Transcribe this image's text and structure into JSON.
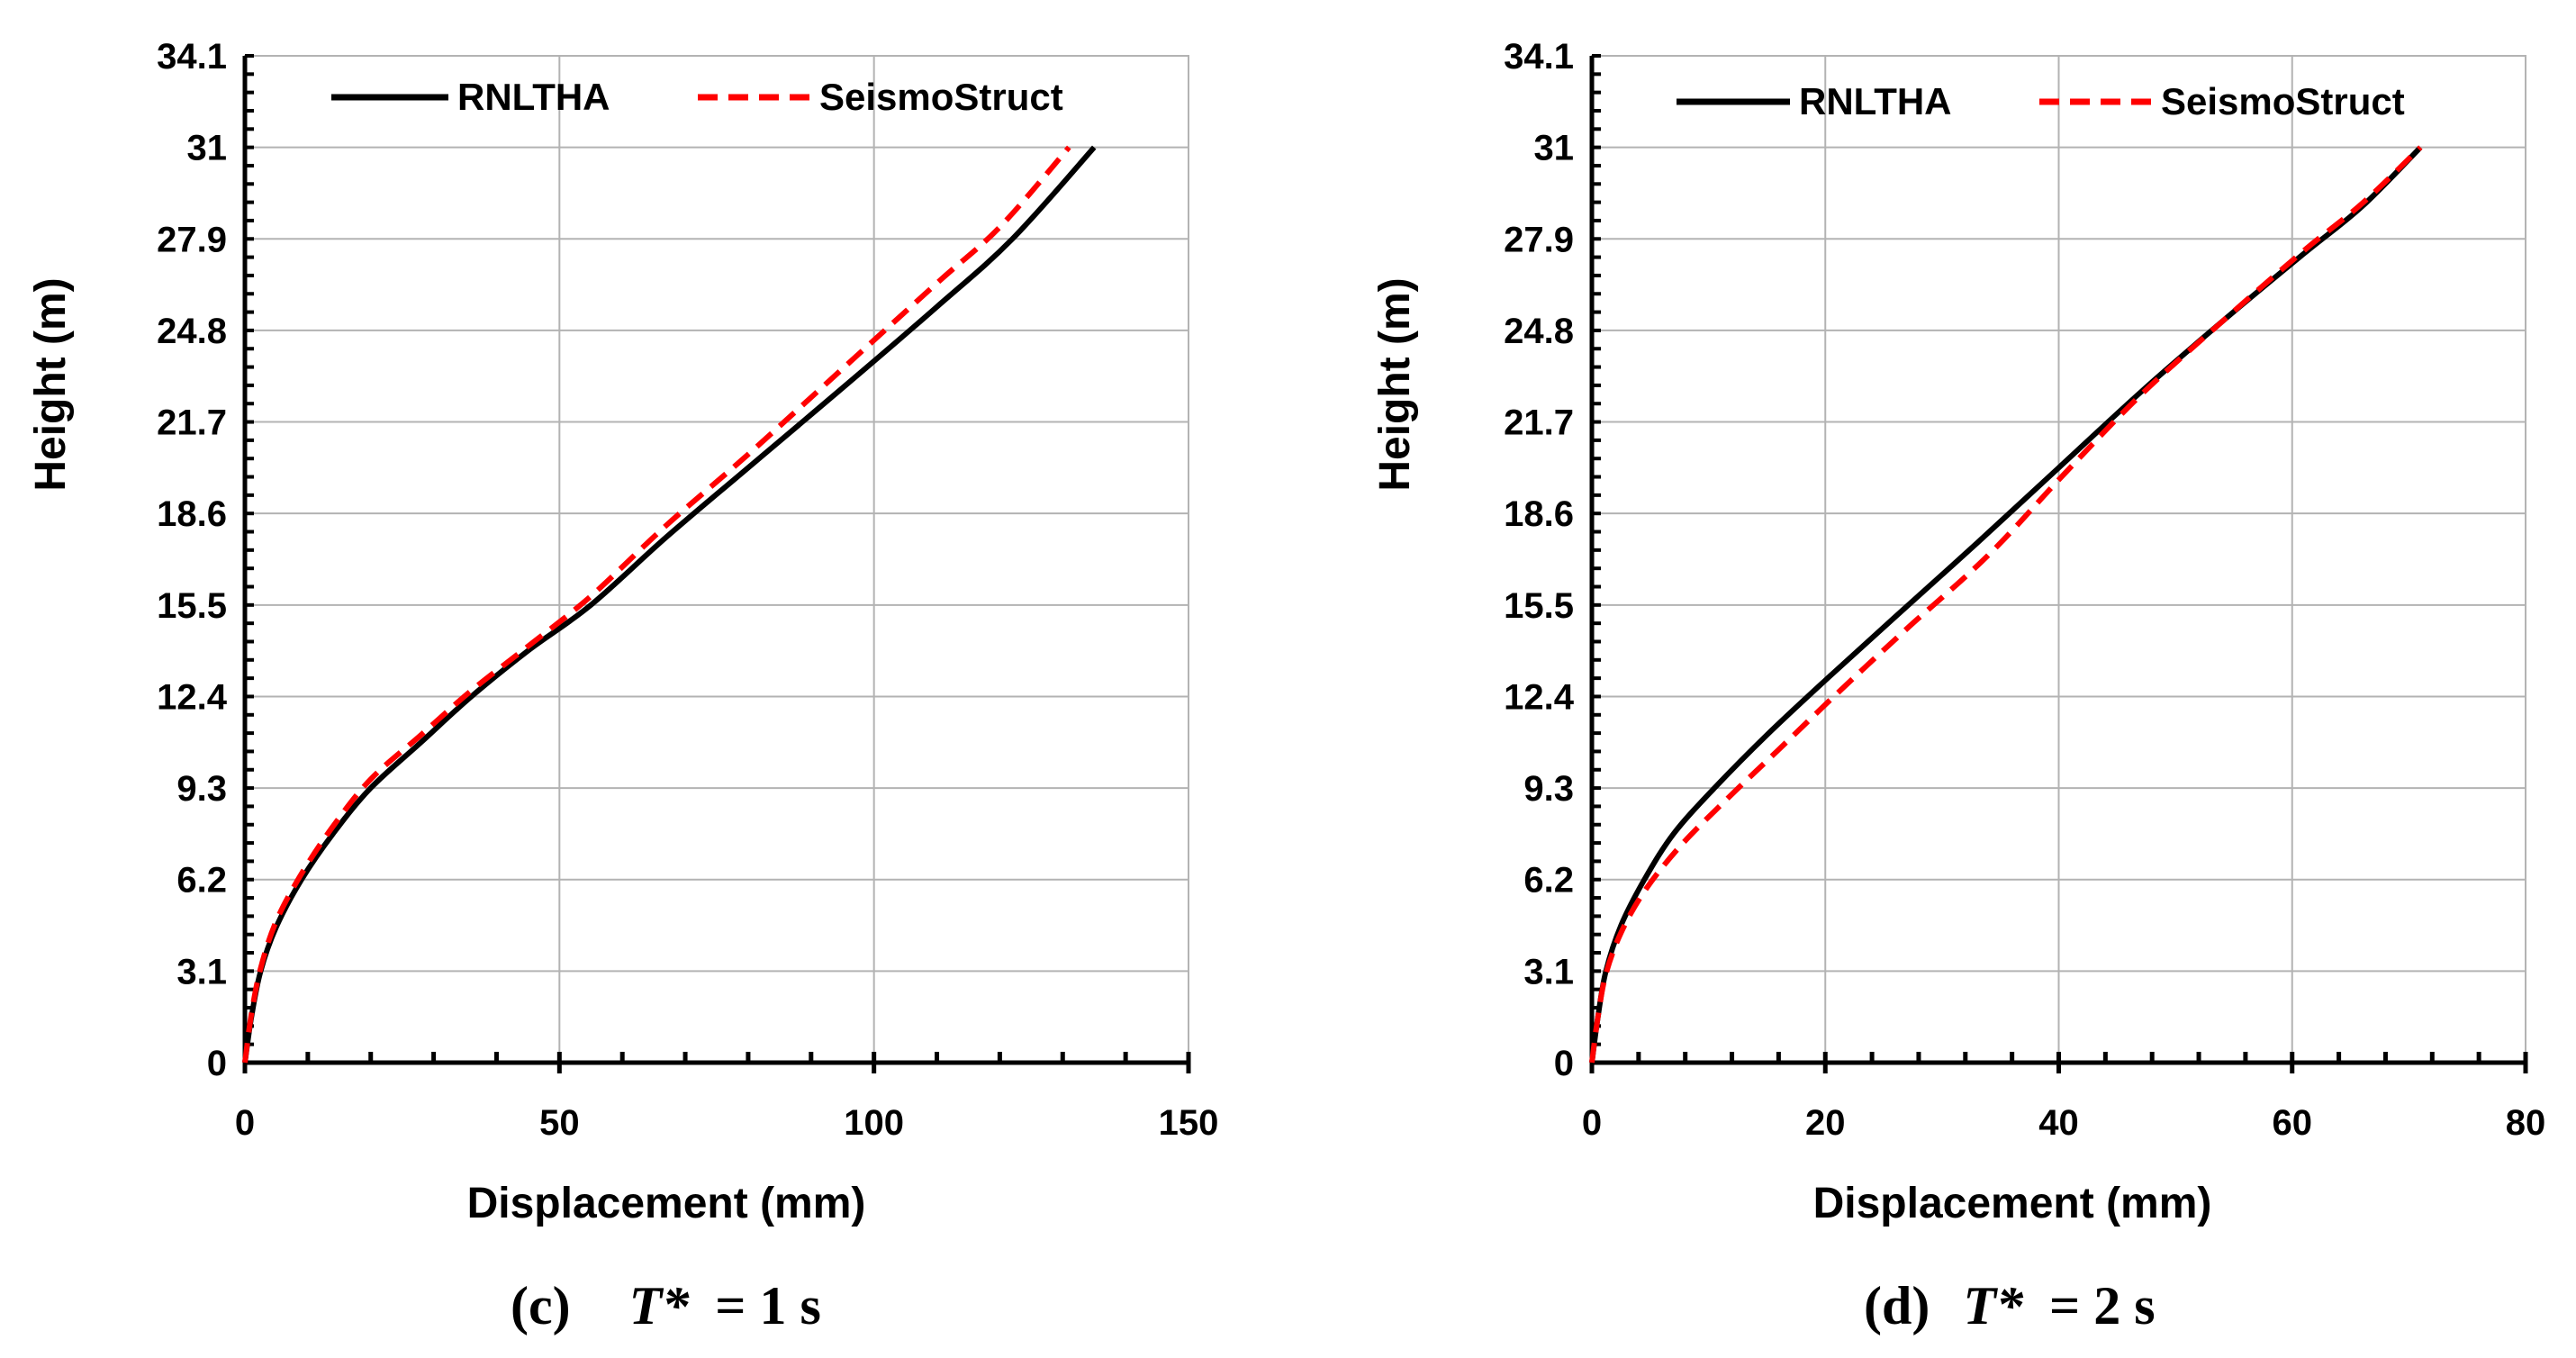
{
  "chart_data": [
    {
      "type": "line",
      "panel": "c",
      "caption": {
        "letter": "(c)",
        "symbol": "T*",
        "equals": "= 1 s"
      },
      "xlabel": "Displacement (mm)",
      "ylabel": "Height (m)",
      "xlim": [
        0,
        150
      ],
      "ylim": [
        0,
        34.1
      ],
      "xticks": [
        0,
        50,
        100,
        150
      ],
      "yticks": [
        0,
        3.1,
        6.2,
        9.3,
        12.4,
        15.5,
        18.6,
        21.7,
        24.8,
        27.9,
        31,
        34.1
      ],
      "grid": true,
      "legend_position": "top",
      "series": [
        {
          "name": "RNLTHA",
          "style": "solid",
          "color": "#000000",
          "x": [
            0,
            1,
            2.5,
            5,
            9,
            14,
            20,
            28,
            36,
            45,
            55,
            67,
            80,
            95,
            110,
            122,
            135
          ],
          "y": [
            0,
            1.5,
            3.1,
            4.6,
            6.2,
            7.75,
            9.3,
            10.85,
            12.4,
            13.95,
            15.5,
            17.8,
            20.15,
            22.85,
            25.6,
            27.9,
            31
          ]
        },
        {
          "name": "SeismoStruct",
          "style": "dashed",
          "color": "#ff0000",
          "x": [
            0,
            1,
            2.5,
            5,
            9,
            14,
            20,
            28,
            36,
            45,
            55,
            67,
            80,
            95,
            110,
            120,
            131
          ],
          "y": [
            0,
            1.6,
            3.2,
            4.8,
            6.4,
            8.0,
            9.6,
            11.1,
            12.6,
            14.1,
            15.8,
            18.2,
            20.6,
            23.5,
            26.4,
            28.3,
            31
          ]
        }
      ]
    },
    {
      "type": "line",
      "panel": "d",
      "caption": {
        "letter": "(d)",
        "symbol": "T*",
        "equals": "= 2 s"
      },
      "xlabel": "Displacement (mm)",
      "ylabel": "Height (m)",
      "xlim": [
        0,
        80
      ],
      "ylim": [
        0,
        34.1
      ],
      "xticks": [
        0,
        20,
        40,
        60,
        80
      ],
      "yticks": [
        0,
        3.1,
        6.2,
        9.3,
        12.4,
        15.5,
        18.6,
        21.7,
        24.8,
        27.9,
        31,
        34.1
      ],
      "grid": true,
      "legend_position": "top",
      "series": [
        {
          "name": "RNLTHA",
          "style": "solid",
          "color": "#000000",
          "x": [
            0,
            0.5,
            1.2,
            2.5,
            4.5,
            7,
            10.5,
            15,
            20,
            26,
            33,
            40,
            47,
            54,
            61,
            66,
            71
          ],
          "y": [
            0,
            1.5,
            3.1,
            4.65,
            6.2,
            7.75,
            9.3,
            11.1,
            12.95,
            15.1,
            17.6,
            20.15,
            22.7,
            25.1,
            27.4,
            29.0,
            31
          ]
        },
        {
          "name": "SeismoStruct",
          "style": "dashed",
          "color": "#ff0000",
          "x": [
            0,
            0.5,
            1.2,
            2.5,
            4.5,
            7.5,
            11.5,
            16,
            21,
            27,
            34,
            40.5,
            47,
            54,
            61,
            66,
            71
          ],
          "y": [
            0,
            1.5,
            3.0,
            4.4,
            5.8,
            7.3,
            8.9,
            10.6,
            12.5,
            14.7,
            17.2,
            19.95,
            22.6,
            25.1,
            27.5,
            29.1,
            31
          ]
        }
      ]
    }
  ]
}
